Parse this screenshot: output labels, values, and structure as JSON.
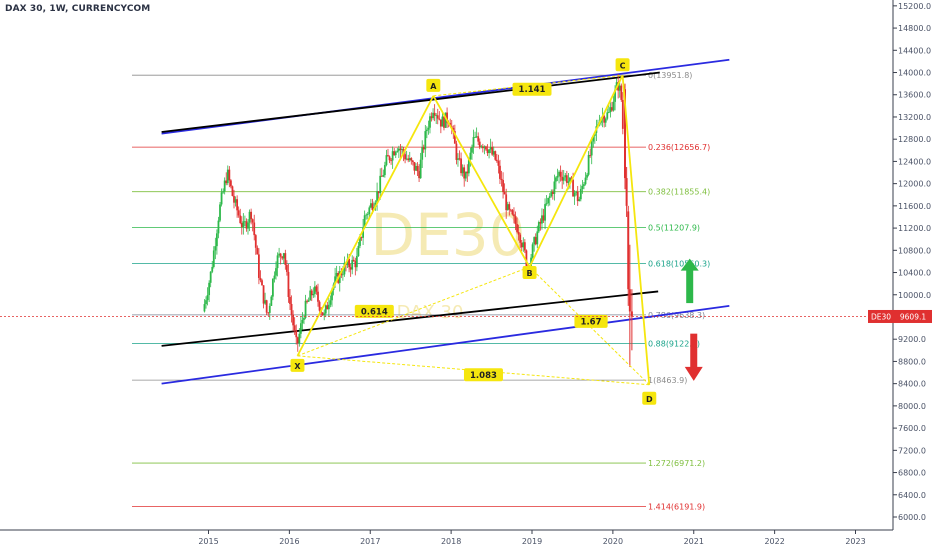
{
  "chart_title": "DAX 30, 1W, CURRENCYCOM",
  "watermark": {
    "symbol": "DE30",
    "name": "DAX 30"
  },
  "price_badge": {
    "symbol": "DE30",
    "price": "9609.1",
    "value": 9609.1,
    "color": "#e03030"
  },
  "colors": {
    "channel": "#2a2ae0",
    "black_line": "#000000",
    "harmonic": "#f5e60e",
    "up": "#2db84a",
    "down": "#e03030",
    "bg": "#ffffff",
    "axis_text": "#4a5266"
  },
  "chart_data": {
    "type": "candlestick",
    "title": "DAX 30, 1W, CURRENCYCOM",
    "x_axis": {
      "ticks": [
        "2015",
        "2016",
        "2017",
        "2018",
        "2019",
        "2020",
        "2021",
        "2022",
        "2023"
      ],
      "range": [
        2014.25,
        2023.3
      ]
    },
    "y_axis": {
      "ticks": [
        "6000.0",
        "6400.0",
        "6800.0",
        "7200.0",
        "7600.0",
        "8000.0",
        "8400.0",
        "8800.0",
        "9200.0",
        "9600.0",
        "10000.0",
        "10400.0",
        "10800.0",
        "11200.0",
        "11600.0",
        "12000.0",
        "12400.0",
        "12800.0",
        "13200.0",
        "13600.0",
        "14000.0",
        "14400.0",
        "14800.0",
        "15200.0"
      ],
      "range": [
        5850,
        15250
      ]
    },
    "price_path": [
      [
        2014.95,
        9700
      ],
      [
        2015.05,
        10400
      ],
      [
        2015.15,
        11500
      ],
      [
        2015.25,
        12200
      ],
      [
        2015.33,
        11700
      ],
      [
        2015.45,
        11200
      ],
      [
        2015.55,
        11500
      ],
      [
        2015.65,
        10300
      ],
      [
        2015.75,
        9600
      ],
      [
        2015.85,
        10600
      ],
      [
        2015.95,
        10800
      ],
      [
        2016.02,
        9900
      ],
      [
        2016.11,
        9050
      ],
      [
        2016.2,
        9700
      ],
      [
        2016.32,
        10100
      ],
      [
        2016.45,
        9600
      ],
      [
        2016.55,
        10150
      ],
      [
        2016.7,
        10500
      ],
      [
        2016.85,
        10600
      ],
      [
        2016.95,
        11400
      ],
      [
        2017.1,
        11800
      ],
      [
        2017.22,
        12400
      ],
      [
        2017.35,
        12700
      ],
      [
        2017.5,
        12400
      ],
      [
        2017.62,
        12200
      ],
      [
        2017.72,
        13000
      ],
      [
        2017.8,
        13400
      ],
      [
        2017.9,
        13100
      ],
      [
        2018.0,
        13200
      ],
      [
        2018.1,
        12400
      ],
      [
        2018.2,
        12100
      ],
      [
        2018.3,
        12800
      ],
      [
        2018.45,
        12700
      ],
      [
        2018.58,
        12400
      ],
      [
        2018.72,
        11500
      ],
      [
        2018.85,
        11200
      ],
      [
        2018.97,
        10500
      ],
      [
        2019.08,
        11100
      ],
      [
        2019.2,
        11600
      ],
      [
        2019.35,
        12200
      ],
      [
        2019.45,
        12100
      ],
      [
        2019.6,
        11700
      ],
      [
        2019.72,
        12400
      ],
      [
        2019.85,
        13200
      ],
      [
        2019.97,
        13250
      ],
      [
        2020.08,
        13800
      ],
      [
        2020.12,
        13600
      ],
      [
        2020.18,
        12000
      ],
      [
        2020.22,
        10000
      ],
      [
        2020.24,
        9609
      ]
    ],
    "last_price": 9609.1,
    "harmonic_pattern": {
      "points": [
        {
          "label": "X",
          "x": 2016.1,
          "y": 8900
        },
        {
          "label": "A",
          "x": 2017.78,
          "y": 13580
        },
        {
          "label": "B",
          "x": 2018.97,
          "y": 10500
        },
        {
          "label": "C",
          "x": 2020.12,
          "y": 13950
        },
        {
          "label": "D",
          "x": 2020.45,
          "y": 8380
        }
      ],
      "ratios": [
        {
          "label": "0.614",
          "x": 2017.05,
          "y": 9700
        },
        {
          "label": "1.141",
          "x": 2019.0,
          "y": 13700
        },
        {
          "label": "1.67",
          "x": 2019.73,
          "y": 9520
        },
        {
          "label": "1.083",
          "x": 2018.4,
          "y": 8560
        }
      ]
    },
    "fib_levels": [
      {
        "label": "0(13951.8)",
        "value": 13951.8,
        "color": "#8c8c8c"
      },
      {
        "label": "0.236(12656.7)",
        "value": 12656.7,
        "color": "#e03030"
      },
      {
        "label": "0.382(11855.4)",
        "value": 11855.4,
        "color": "#7fbf3f"
      },
      {
        "label": "0.5(11207.9)",
        "value": 11207.9,
        "color": "#2db84a"
      },
      {
        "label": "0.618(10560.3)",
        "value": 10560.3,
        "color": "#1aa38a"
      },
      {
        "label": "0.786(9638.3)",
        "value": 9638.3,
        "color": "#7b8596"
      },
      {
        "label": "0.88(9122.4)",
        "value": 9122.4,
        "color": "#1aa38a"
      },
      {
        "label": "1(8463.9)",
        "value": 8463.9,
        "color": "#8c8c8c"
      },
      {
        "label": "1.272(6971.2)",
        "value": 6971.2,
        "color": "#7fbf3f"
      },
      {
        "label": "1.414(6191.9)",
        "value": 6191.9,
        "color": "#e03030"
      }
    ],
    "trend_lines": [
      {
        "name": "upper-channel",
        "color": "#2a2ae0",
        "from": [
          2014.42,
          12900
        ],
        "to": [
          2021.44,
          14230
        ]
      },
      {
        "name": "lower-channel",
        "color": "#2a2ae0",
        "from": [
          2014.42,
          8400
        ],
        "to": [
          2021.44,
          9800
        ]
      },
      {
        "name": "upper-black",
        "color": "#000000",
        "from": [
          2014.42,
          12930
        ],
        "to": [
          2020.58,
          14000
        ]
      },
      {
        "name": "lower-black",
        "color": "#000000",
        "from": [
          2014.42,
          9080
        ],
        "to": [
          2020.56,
          10060
        ]
      }
    ],
    "arrows": [
      {
        "direction": "up",
        "color": "#2db84a",
        "x": 2020.95,
        "from": 9850,
        "to": 10650
      },
      {
        "direction": "down",
        "color": "#e03030",
        "x": 2021.0,
        "from": 9300,
        "to": 8450
      }
    ]
  }
}
